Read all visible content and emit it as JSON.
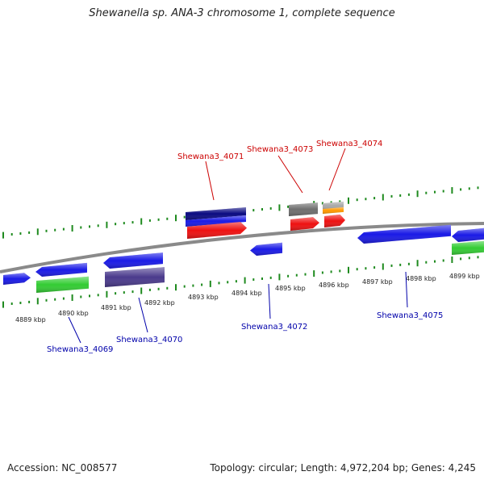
{
  "title": "Shewanella sp. ANA-3 chromosome 1, complete sequence",
  "footer": {
    "accession": "Accession: NC_008577",
    "summary": "Topology: circular; Length: 4,972,204 bp; Genes: 4,245"
  },
  "colors": {
    "backbone": "#8a8a8a",
    "tick": "#1e8a1e",
    "plus_label": "#cc0000",
    "minus_label": "#0000aa",
    "blue": "#1a1ae6",
    "red": "#ee1111",
    "green": "#33cc33",
    "navy": "#0a0a80",
    "purple": "#4a3a8c",
    "gray": "#6e6e6e",
    "orange": "#ff9900",
    "silver": "#a8a8a8"
  },
  "scale": {
    "kbp_labels": [
      {
        "text": "4889 kbp",
        "kbp": 4889
      },
      {
        "text": "4890 kbp",
        "kbp": 4890
      },
      {
        "text": "4891 kbp",
        "kbp": 4891
      },
      {
        "text": "4892 kbp",
        "kbp": 4892
      },
      {
        "text": "4893 kbp",
        "kbp": 4893
      },
      {
        "text": "4894 kbp",
        "kbp": 4894
      },
      {
        "text": "4895 kbp",
        "kbp": 4895
      },
      {
        "text": "4896 kbp",
        "kbp": 4896
      },
      {
        "text": "4897 kbp",
        "kbp": 4897
      },
      {
        "text": "4898 kbp",
        "kbp": 4898
      },
      {
        "text": "4899 kbp",
        "kbp": 4899
      }
    ]
  },
  "gene_labels": [
    {
      "text": "Shewana3_4069",
      "strand": "minus"
    },
    {
      "text": "Shewana3_4070",
      "strand": "minus"
    },
    {
      "text": "Shewana3_4071",
      "strand": "plus"
    },
    {
      "text": "Shewana3_4072",
      "strand": "minus"
    },
    {
      "text": "Shewana3_4073",
      "strand": "plus"
    },
    {
      "text": "Shewana3_4074",
      "strand": "plus"
    },
    {
      "text": "Shewana3_4075",
      "strand": "minus"
    }
  ]
}
